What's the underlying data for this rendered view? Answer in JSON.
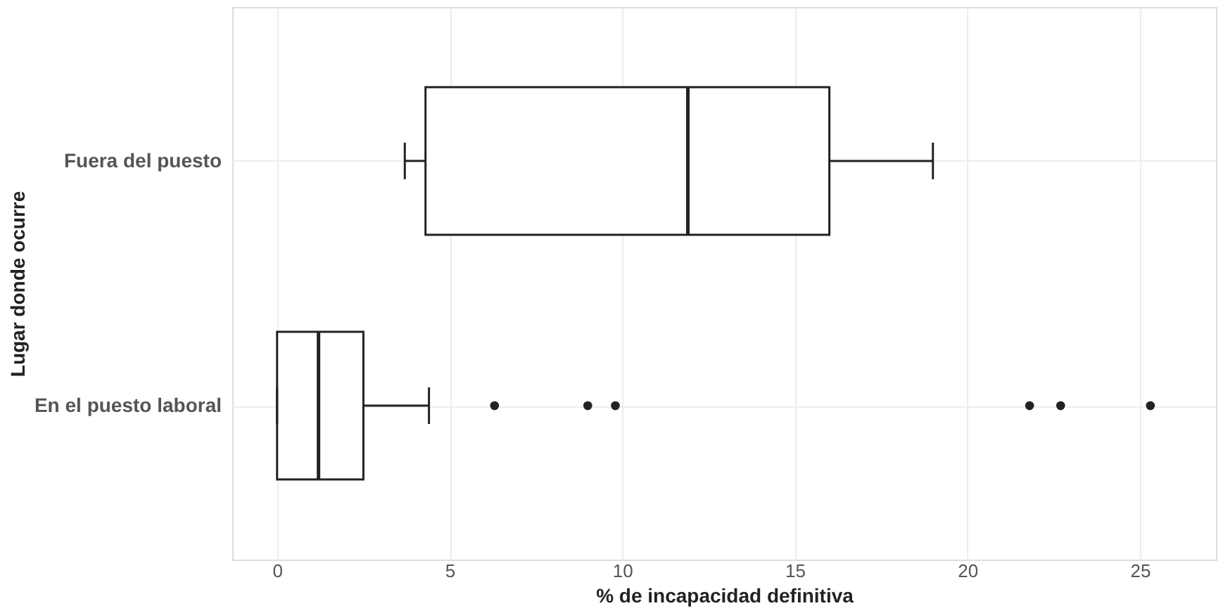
{
  "chart_data": {
    "type": "box",
    "orientation": "horizontal",
    "xlabel": "% de incapacidad definitiva",
    "ylabel": "Lugar donde ocurre",
    "categories": [
      "Fuera del puesto",
      "En el puesto laboral"
    ],
    "boxes": [
      {
        "low": 3.7,
        "q1": 4.3,
        "median": 11.9,
        "q3": 16.0,
        "high": 19.0
      },
      {
        "low": 0,
        "q1": 0,
        "median": 1.2,
        "q3": 2.5,
        "high": 4.4,
        "outliers": [
          6.3,
          9.0,
          9.8,
          21.8,
          22.7,
          25.3
        ]
      }
    ],
    "color": "#222222",
    "xlim": [
      -1.3,
      27.2
    ],
    "xticks": [
      0,
      5,
      10,
      15,
      20,
      25
    ],
    "grid": true
  }
}
